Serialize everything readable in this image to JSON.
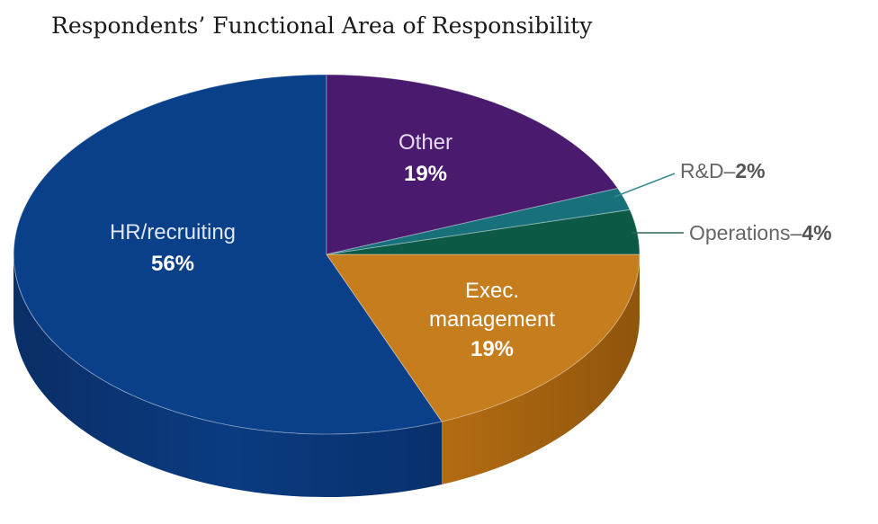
{
  "chart_data": {
    "type": "pie",
    "title": "Respondents’ Functional Area of Responsibility",
    "slices": [
      {
        "label": "HR/recruiting",
        "value": 56,
        "display": "56%",
        "color": "#0a3f8a"
      },
      {
        "label": "Exec. management",
        "value": 19,
        "display": "19%",
        "color": "#c67d1e"
      },
      {
        "label": "Operations",
        "value": 4,
        "display": "4%",
        "color": "#0c5a45"
      },
      {
        "label": "R&D",
        "value": 2,
        "display": "2%",
        "color": "#17707a"
      },
      {
        "label": "Other",
        "value": 19,
        "display": "19%",
        "color": "#4a1a6e"
      }
    ]
  }
}
